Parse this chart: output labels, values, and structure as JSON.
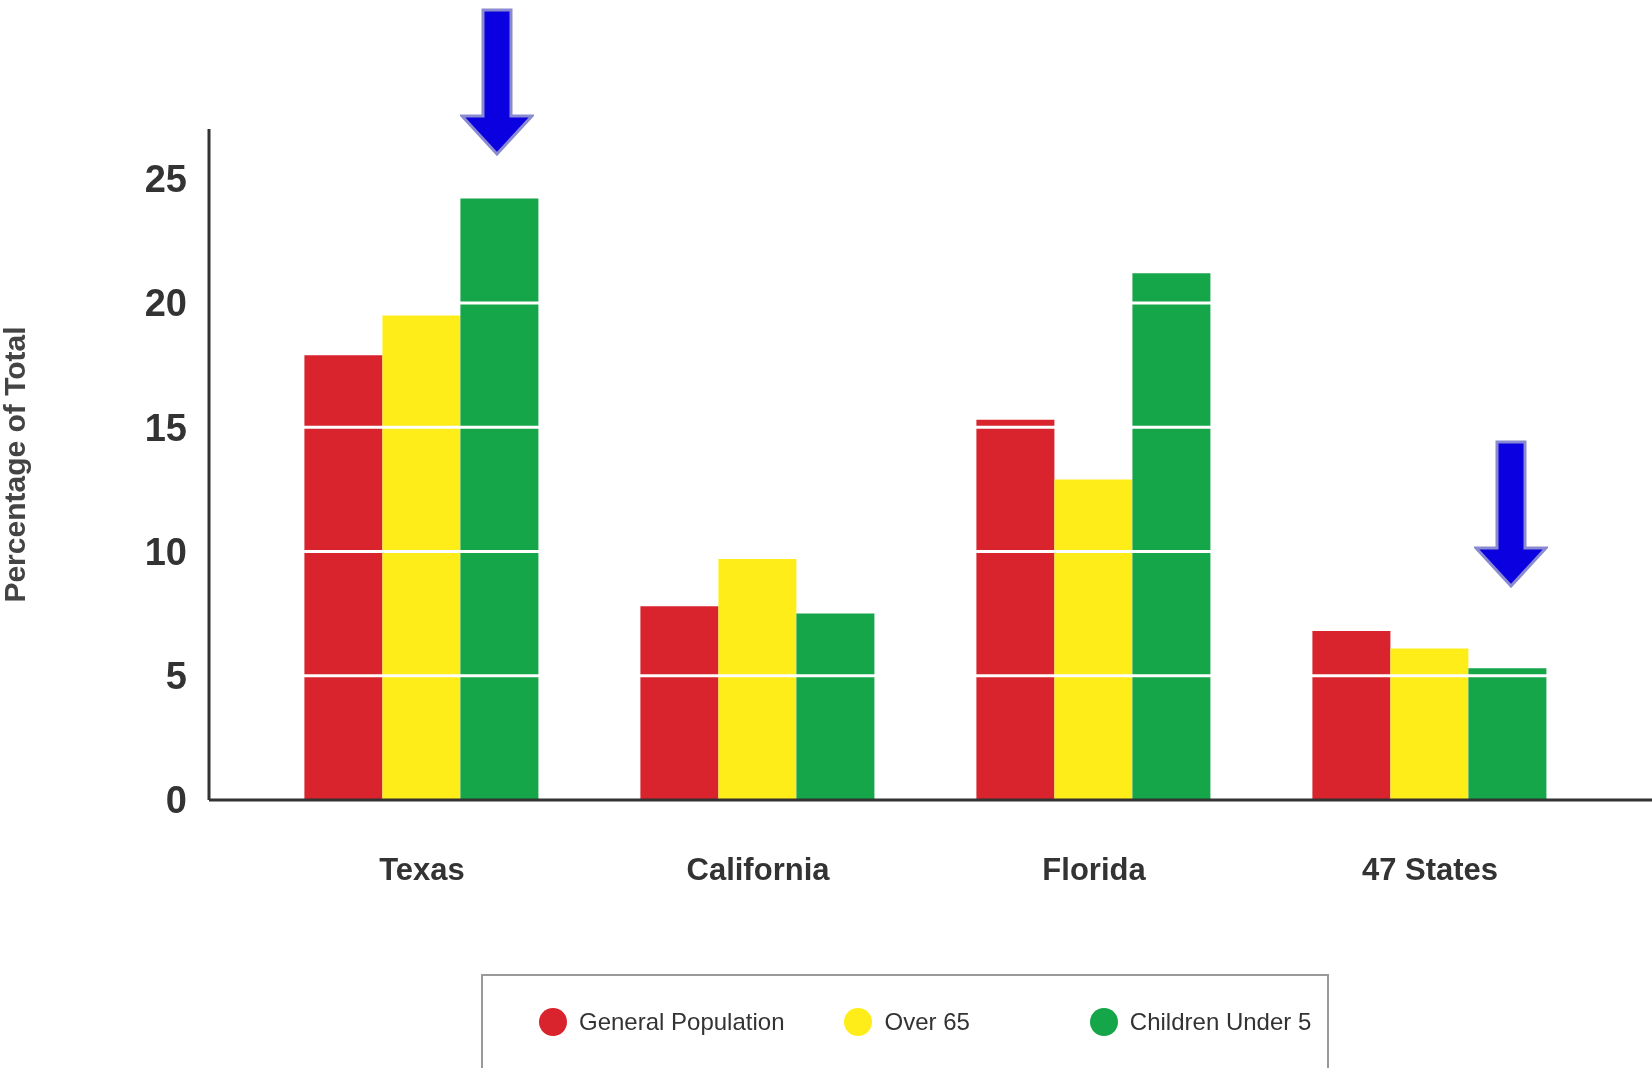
{
  "chart_data": {
    "type": "bar",
    "ylabel": "Percentage of Total",
    "categories": [
      "Texas",
      "California",
      "Florida",
      "47 States"
    ],
    "series": [
      {
        "name": "General Population",
        "color": "#d9232d",
        "values": [
          17.9,
          7.8,
          15.3,
          6.8
        ]
      },
      {
        "name": "Over 65",
        "color": "#ffed1a",
        "values": [
          19.5,
          9.7,
          12.9,
          6.1
        ]
      },
      {
        "name": "Children Under 5",
        "color": "#16a64a",
        "values": [
          24.2,
          7.5,
          21.2,
          5.3
        ]
      }
    ],
    "ylim": [
      0,
      27
    ],
    "yticks": [
      0,
      5,
      10,
      15,
      20,
      25
    ],
    "grid": "y",
    "legend": "bottom"
  }
}
